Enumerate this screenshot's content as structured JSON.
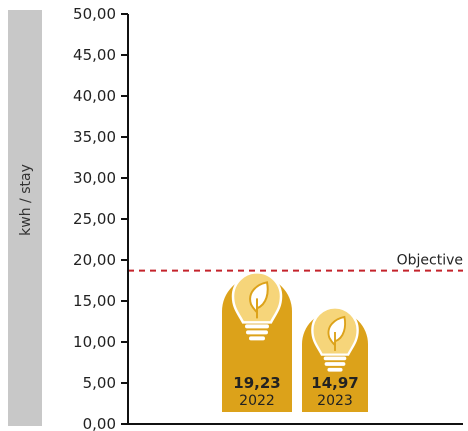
{
  "chart_data": {
    "type": "bar",
    "ylabel": "kwh / stay",
    "ylim": [
      0,
      50
    ],
    "yticks": [
      "0,00",
      "5,00",
      "10,00",
      "15,00",
      "20,00",
      "25,00",
      "30,00",
      "35,00",
      "40,00",
      "45,00",
      "50,00"
    ],
    "categories": [
      "2022",
      "2023"
    ],
    "values": [
      19.23,
      14.97
    ],
    "value_labels": [
      "19,23",
      "14,97"
    ],
    "objective": {
      "label": "Objective",
      "value": 18.7
    },
    "grid": false,
    "bar_icon": "lightbulb-leaf-icon",
    "colors": {
      "bar": "#dca21a",
      "bulb": "#f6d57a",
      "objective_line": "#c4232b",
      "ylabel_band": "#c8c8c8",
      "axis": "#111111"
    }
  }
}
